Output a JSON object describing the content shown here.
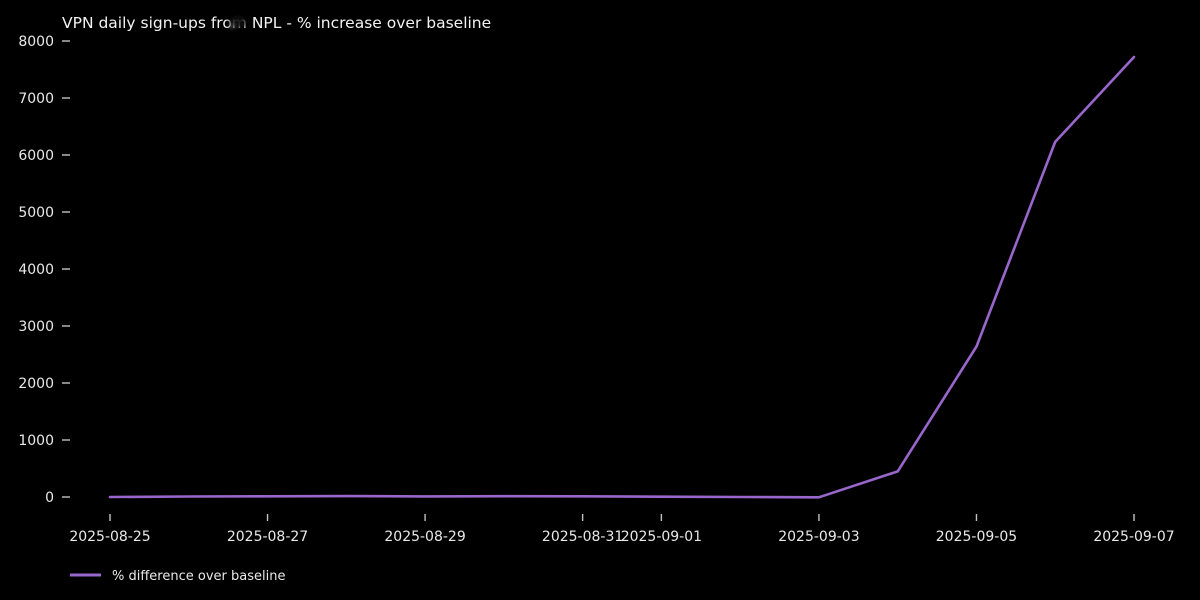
{
  "figure": {
    "background": "#000000",
    "text_color": "#e8e8e8",
    "title_color": "#f2f2f2",
    "tick_color": "#c2c2c2"
  },
  "chart_data": {
    "type": "line",
    "title": "VPN daily sign-ups from NPL - % increase over baseline",
    "xlabel": "",
    "ylabel": "",
    "grid": false,
    "x": [
      "2025-08-25",
      "2025-08-26",
      "2025-08-27",
      "2025-08-28",
      "2025-08-29",
      "2025-08-30",
      "2025-08-31",
      "2025-09-01",
      "2025-09-02",
      "2025-09-03",
      "2025-09-04",
      "2025-09-05",
      "2025-09-06",
      "2025-09-07"
    ],
    "series": [
      {
        "name": "% difference over baseline",
        "color": "#9966cc",
        "values": [
          0,
          8,
          12,
          15,
          10,
          14,
          12,
          5,
          0,
          -5,
          450,
          2640,
          6230,
          7720
        ]
      }
    ],
    "xticks": {
      "labels": [
        "2025-08-25",
        "2025-08-27",
        "2025-08-29",
        "2025-08-31",
        "2025-09-01",
        "2025-09-03",
        "2025-09-05",
        "2025-09-07"
      ],
      "indices": [
        0,
        2,
        4,
        6,
        7,
        9,
        11,
        13
      ]
    },
    "yticks": [
      0,
      1000,
      2000,
      3000,
      4000,
      5000,
      6000,
      7000,
      8000
    ],
    "ylim": [
      -300,
      8100
    ],
    "legend": {
      "position": "lower-left",
      "entries": [
        "% difference over baseline"
      ]
    }
  }
}
